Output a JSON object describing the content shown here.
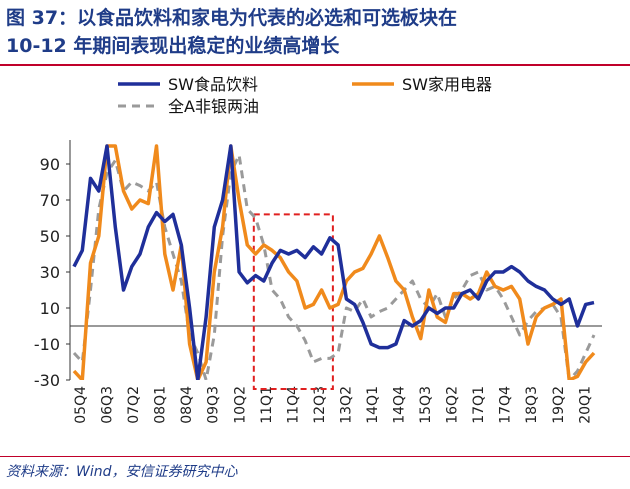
{
  "header": {
    "title_line1": "图 37：以食品饮料和家电为代表的必选和可选板块在",
    "title_line2": "10-12 年期间表现出稳定的业绩高增长"
  },
  "footer": {
    "source": "资料来源：Wind，安信证券研究中心"
  },
  "colors": {
    "food": "#1f2f9a",
    "appliance": "#f08a1c",
    "all_a": "#9a9a9a",
    "highlight": "#e02020",
    "title": "#1f3c88",
    "rule": "#c0002a"
  },
  "chart_data": {
    "type": "line",
    "title": "",
    "xlabel": "",
    "ylabel": "",
    "ylim": [
      -30,
      100
    ],
    "yticks": [
      90,
      70,
      50,
      30,
      10,
      -10,
      -30
    ],
    "legend_position": "top",
    "grid": false,
    "x_tick_labels": [
      "05Q4",
      "06Q3",
      "07Q2",
      "08Q1",
      "08Q4",
      "09Q3",
      "10Q2",
      "11Q1",
      "11Q4",
      "12Q3",
      "13Q2",
      "14Q1",
      "14Q4",
      "15Q3",
      "16Q2",
      "17Q1",
      "17Q4",
      "18Q3",
      "19Q2",
      "20Q1"
    ],
    "highlight_box": {
      "x_start": "11Q1",
      "x_end": "12Q3",
      "y_range": [
        -35,
        62
      ]
    },
    "series": [
      {
        "name": "SW食品饮料",
        "style": "solid",
        "points": [
          [
            0,
            33
          ],
          [
            0.5,
            42
          ],
          [
            1,
            82
          ],
          [
            1.5,
            75
          ],
          [
            2,
            100
          ],
          [
            2.5,
            55
          ],
          [
            3,
            20
          ],
          [
            3.5,
            33
          ],
          [
            4,
            40
          ],
          [
            4.5,
            55
          ],
          [
            5,
            63
          ],
          [
            5.5,
            58
          ],
          [
            6,
            62
          ],
          [
            6.5,
            45
          ],
          [
            7,
            10
          ],
          [
            7.5,
            -30
          ],
          [
            8,
            5
          ],
          [
            8.5,
            55
          ],
          [
            9,
            70
          ],
          [
            9.5,
            100
          ],
          [
            10,
            30
          ],
          [
            10.5,
            24
          ],
          [
            11,
            28
          ],
          [
            11.5,
            25
          ],
          [
            12,
            35
          ],
          [
            12.5,
            42
          ],
          [
            13,
            40
          ],
          [
            13.5,
            42
          ],
          [
            14,
            38
          ],
          [
            14.5,
            44
          ],
          [
            15,
            40
          ],
          [
            15.5,
            49
          ],
          [
            16,
            45
          ],
          [
            16.5,
            15
          ],
          [
            17,
            12
          ],
          [
            17.5,
            2
          ],
          [
            18,
            -10
          ],
          [
            18.5,
            -12
          ],
          [
            19,
            -12
          ],
          [
            19.5,
            -10
          ],
          [
            20,
            3
          ],
          [
            20.5,
            0
          ],
          [
            21,
            3
          ],
          [
            21.5,
            10
          ],
          [
            22,
            7
          ],
          [
            22.5,
            10
          ],
          [
            23,
            10
          ],
          [
            23.5,
            18
          ],
          [
            24,
            20
          ],
          [
            24.5,
            15
          ],
          [
            25,
            25
          ],
          [
            25.5,
            30
          ],
          [
            26,
            30
          ],
          [
            26.5,
            33
          ],
          [
            27,
            30
          ],
          [
            27.5,
            25
          ],
          [
            28,
            22
          ],
          [
            28.5,
            20
          ],
          [
            29,
            15
          ],
          [
            29.5,
            12
          ],
          [
            30,
            15
          ],
          [
            30.5,
            0
          ],
          [
            31,
            12
          ],
          [
            31.5,
            13
          ]
        ]
      },
      {
        "name": "SW家用电器",
        "style": "solid",
        "points": [
          [
            0,
            -25
          ],
          [
            0.5,
            -30
          ],
          [
            1,
            35
          ],
          [
            1.5,
            50
          ],
          [
            2,
            100
          ],
          [
            2.5,
            100
          ],
          [
            3,
            75
          ],
          [
            3.5,
            65
          ],
          [
            4,
            70
          ],
          [
            4.5,
            68
          ],
          [
            5,
            100
          ],
          [
            5.5,
            40
          ],
          [
            6,
            20
          ],
          [
            6.5,
            45
          ],
          [
            7,
            -10
          ],
          [
            7.5,
            -30
          ],
          [
            8,
            -20
          ],
          [
            8.5,
            30
          ],
          [
            9,
            55
          ],
          [
            9.5,
            100
          ],
          [
            10,
            70
          ],
          [
            10.5,
            45
          ],
          [
            11,
            40
          ],
          [
            11.5,
            45
          ],
          [
            12,
            42
          ],
          [
            12.5,
            38
          ],
          [
            13,
            30
          ],
          [
            13.5,
            25
          ],
          [
            14,
            10
          ],
          [
            14.5,
            12
          ],
          [
            15,
            20
          ],
          [
            15.5,
            10
          ],
          [
            16,
            12
          ],
          [
            16.5,
            25
          ],
          [
            17,
            30
          ],
          [
            17.5,
            32
          ],
          [
            18,
            40
          ],
          [
            18.5,
            50
          ],
          [
            19,
            38
          ],
          [
            19.5,
            25
          ],
          [
            20,
            20
          ],
          [
            20.5,
            5
          ],
          [
            21,
            -7
          ],
          [
            21.5,
            20
          ],
          [
            22,
            5
          ],
          [
            22.5,
            2
          ],
          [
            23,
            18
          ],
          [
            23.5,
            18
          ],
          [
            24,
            15
          ],
          [
            24.5,
            18
          ],
          [
            25,
            30
          ],
          [
            25.5,
            22
          ],
          [
            26,
            20
          ],
          [
            26.5,
            22
          ],
          [
            27,
            15
          ],
          [
            27.5,
            -10
          ],
          [
            28,
            5
          ],
          [
            28.5,
            10
          ],
          [
            29,
            12
          ],
          [
            29.5,
            15
          ],
          [
            30,
            -30
          ],
          [
            30.5,
            -28
          ],
          [
            31,
            -20
          ],
          [
            31.5,
            -15
          ]
        ]
      },
      {
        "name": "全A非银两油",
        "style": "dashed",
        "points": [
          [
            0,
            -15
          ],
          [
            0.5,
            -20
          ],
          [
            1,
            20
          ],
          [
            1.5,
            65
          ],
          [
            2,
            85
          ],
          [
            2.5,
            92
          ],
          [
            3,
            75
          ],
          [
            3.5,
            80
          ],
          [
            4,
            78
          ],
          [
            4.5,
            75
          ],
          [
            5,
            80
          ],
          [
            5.5,
            55
          ],
          [
            6,
            40
          ],
          [
            6.5,
            25
          ],
          [
            7,
            -5
          ],
          [
            7.5,
            -15
          ],
          [
            8,
            -30
          ],
          [
            8.5,
            -5
          ],
          [
            9,
            50
          ],
          [
            9.5,
            85
          ],
          [
            10,
            95
          ],
          [
            10.5,
            65
          ],
          [
            11,
            60
          ],
          [
            11.5,
            45
          ],
          [
            12,
            20
          ],
          [
            12.5,
            15
          ],
          [
            13,
            5
          ],
          [
            13.5,
            0
          ],
          [
            14,
            -8
          ],
          [
            14.5,
            -20
          ],
          [
            15,
            -18
          ],
          [
            15.5,
            -18
          ],
          [
            16,
            -15
          ],
          [
            16.5,
            10
          ],
          [
            17,
            8
          ],
          [
            17.5,
            15
          ],
          [
            18,
            5
          ],
          [
            18.5,
            8
          ],
          [
            19,
            10
          ],
          [
            19.5,
            15
          ],
          [
            20,
            20
          ],
          [
            20.5,
            25
          ],
          [
            21,
            15
          ],
          [
            21.5,
            10
          ],
          [
            22,
            18
          ],
          [
            22.5,
            5
          ],
          [
            23,
            15
          ],
          [
            23.5,
            20
          ],
          [
            24,
            28
          ],
          [
            24.5,
            30
          ],
          [
            25,
            20
          ],
          [
            25.5,
            22
          ],
          [
            26,
            15
          ],
          [
            26.5,
            5
          ],
          [
            27,
            -5
          ],
          [
            27.5,
            3
          ],
          [
            28,
            8
          ],
          [
            28.5,
            10
          ],
          [
            29,
            12
          ],
          [
            29.5,
            5
          ],
          [
            30,
            -30
          ],
          [
            30.5,
            -25
          ],
          [
            31,
            -15
          ],
          [
            31.5,
            -5
          ]
        ]
      }
    ]
  }
}
